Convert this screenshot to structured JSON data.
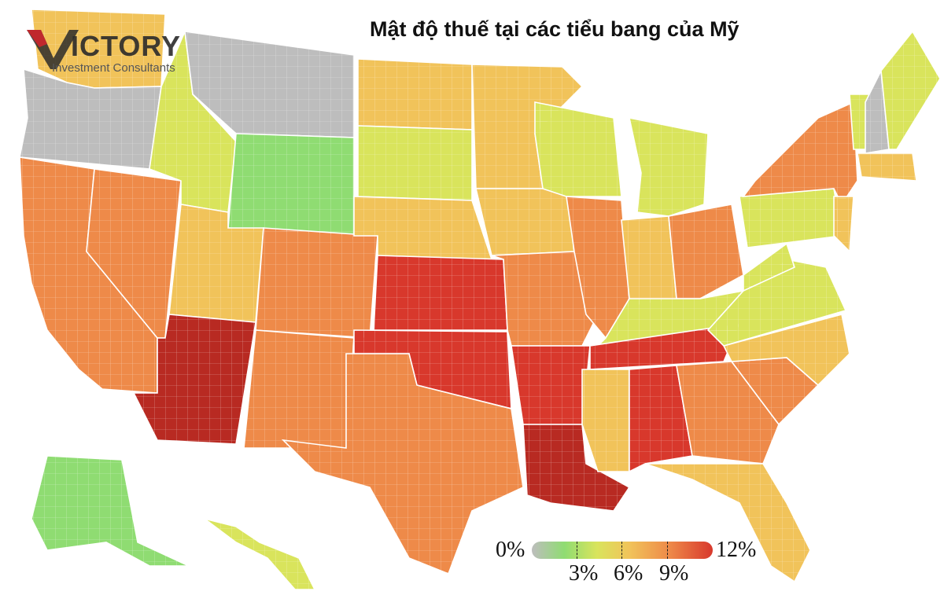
{
  "title": "Mật độ thuế tại các tiểu bang của Mỹ",
  "logo": {
    "mark": "V",
    "name": "ICTORY",
    "subtitle": "Investment Consultants"
  },
  "legend": {
    "min_label": "0%",
    "max_label": "12%",
    "ticks": [
      {
        "label": "3%",
        "value": 3
      },
      {
        "label": "6%",
        "value": 6
      },
      {
        "label": "9%",
        "value": 9
      }
    ],
    "range": [
      0,
      12
    ]
  },
  "colors": {
    "gray": "#bdbdbd",
    "green": "#8fdc72",
    "yellow_green": "#d9e45c",
    "yellow": "#f1c35a",
    "orange": "#ee8a49",
    "red": "#d8382c",
    "dark_red": "#b82a22",
    "logo_red": "#c0282d"
  },
  "regions": [
    {
      "name": "washington",
      "level": 6.5
    },
    {
      "name": "oregon",
      "level": 0
    },
    {
      "name": "california",
      "level": 8.5
    },
    {
      "name": "nevada",
      "level": 7.5
    },
    {
      "name": "idaho",
      "level": 5
    },
    {
      "name": "montana",
      "level": 0
    },
    {
      "name": "wyoming",
      "level": 4
    },
    {
      "name": "utah",
      "level": 6.5
    },
    {
      "name": "arizona",
      "level": 10.5
    },
    {
      "name": "colorado",
      "level": 7.5
    },
    {
      "name": "new-mexico",
      "level": 7
    },
    {
      "name": "north-dakota",
      "level": 6
    },
    {
      "name": "south-dakota",
      "level": 5.5
    },
    {
      "name": "nebraska",
      "level": 6.5
    },
    {
      "name": "kansas",
      "level": 9.5
    },
    {
      "name": "oklahoma",
      "level": 9.5
    },
    {
      "name": "texas",
      "level": 7.5
    },
    {
      "name": "minnesota",
      "level": 6.5
    },
    {
      "name": "iowa",
      "level": 6.5
    },
    {
      "name": "missouri",
      "level": 8
    },
    {
      "name": "arkansas",
      "level": 10
    },
    {
      "name": "louisiana",
      "level": 10.5
    },
    {
      "name": "wisconsin",
      "level": 4.5
    },
    {
      "name": "illinois",
      "level": 8.5
    },
    {
      "name": "michigan",
      "level": 5
    },
    {
      "name": "indiana",
      "level": 6.5
    },
    {
      "name": "ohio",
      "level": 7
    },
    {
      "name": "kentucky",
      "level": 5
    },
    {
      "name": "tennessee",
      "level": 10
    },
    {
      "name": "mississippi",
      "level": 6
    },
    {
      "name": "alabama",
      "level": 9.5
    },
    {
      "name": "georgia",
      "level": 7.5
    },
    {
      "name": "florida",
      "level": 6.5
    },
    {
      "name": "south-carolina",
      "level": 7
    },
    {
      "name": "north-carolina",
      "level": 6.5
    },
    {
      "name": "virginia",
      "level": 5
    },
    {
      "name": "west-virginia",
      "level": 5.5
    },
    {
      "name": "pennsylvania",
      "level": 5.5
    },
    {
      "name": "new-york",
      "level": 7.5
    },
    {
      "name": "vermont",
      "level": 5
    },
    {
      "name": "new-hampshire",
      "level": 0
    },
    {
      "name": "maine",
      "level": 5
    },
    {
      "name": "massachusetts",
      "level": 6
    },
    {
      "name": "new-jersey",
      "level": 6.5
    },
    {
      "name": "alaska",
      "level": 4
    },
    {
      "name": "hawaii",
      "level": 4.5
    }
  ]
}
